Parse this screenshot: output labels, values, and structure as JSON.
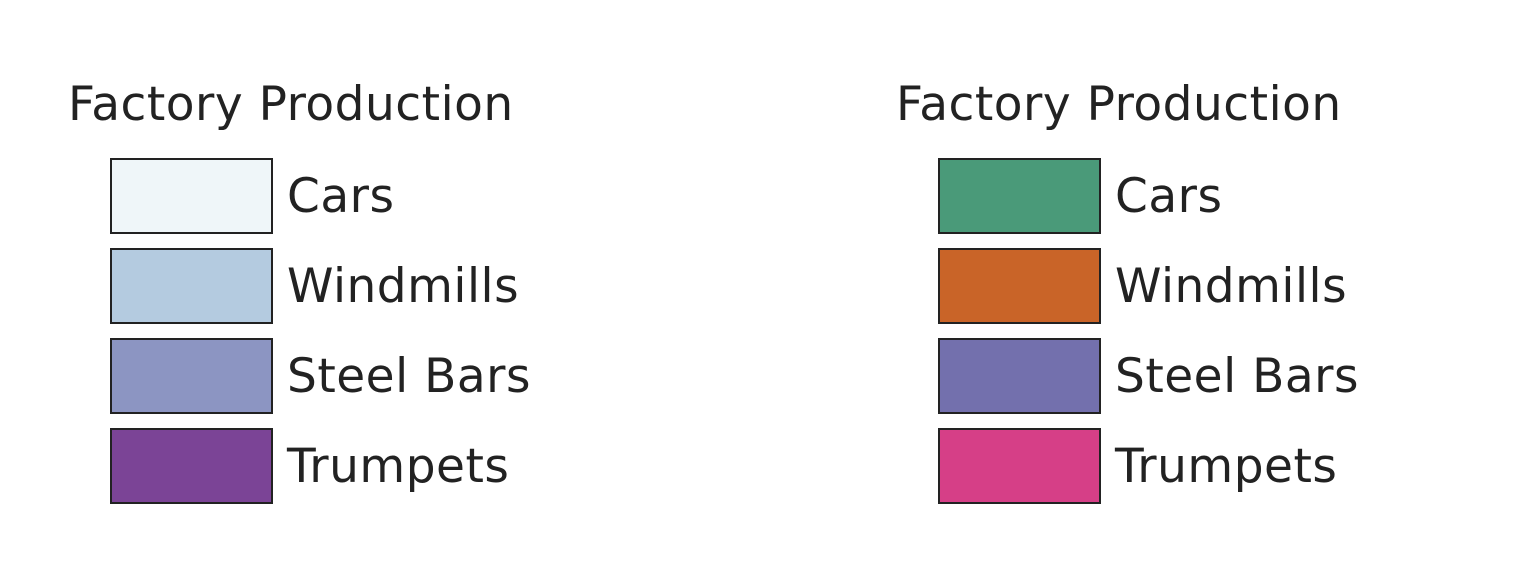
{
  "legends": [
    {
      "title": "Factory Production",
      "items": [
        {
          "label": "Cars",
          "color": "#eff6f9"
        },
        {
          "label": "Windmills",
          "color": "#b4cbe0"
        },
        {
          "label": "Steel Bars",
          "color": "#8c95c2"
        },
        {
          "label": "Trumpets",
          "color": "#7b4496"
        }
      ]
    },
    {
      "title": "Factory Production",
      "items": [
        {
          "label": "Cars",
          "color": "#4a9a79"
        },
        {
          "label": "Windmills",
          "color": "#c96428"
        },
        {
          "label": "Steel Bars",
          "color": "#7370ad"
        },
        {
          "label": "Trumpets",
          "color": "#d63f87"
        }
      ]
    }
  ]
}
